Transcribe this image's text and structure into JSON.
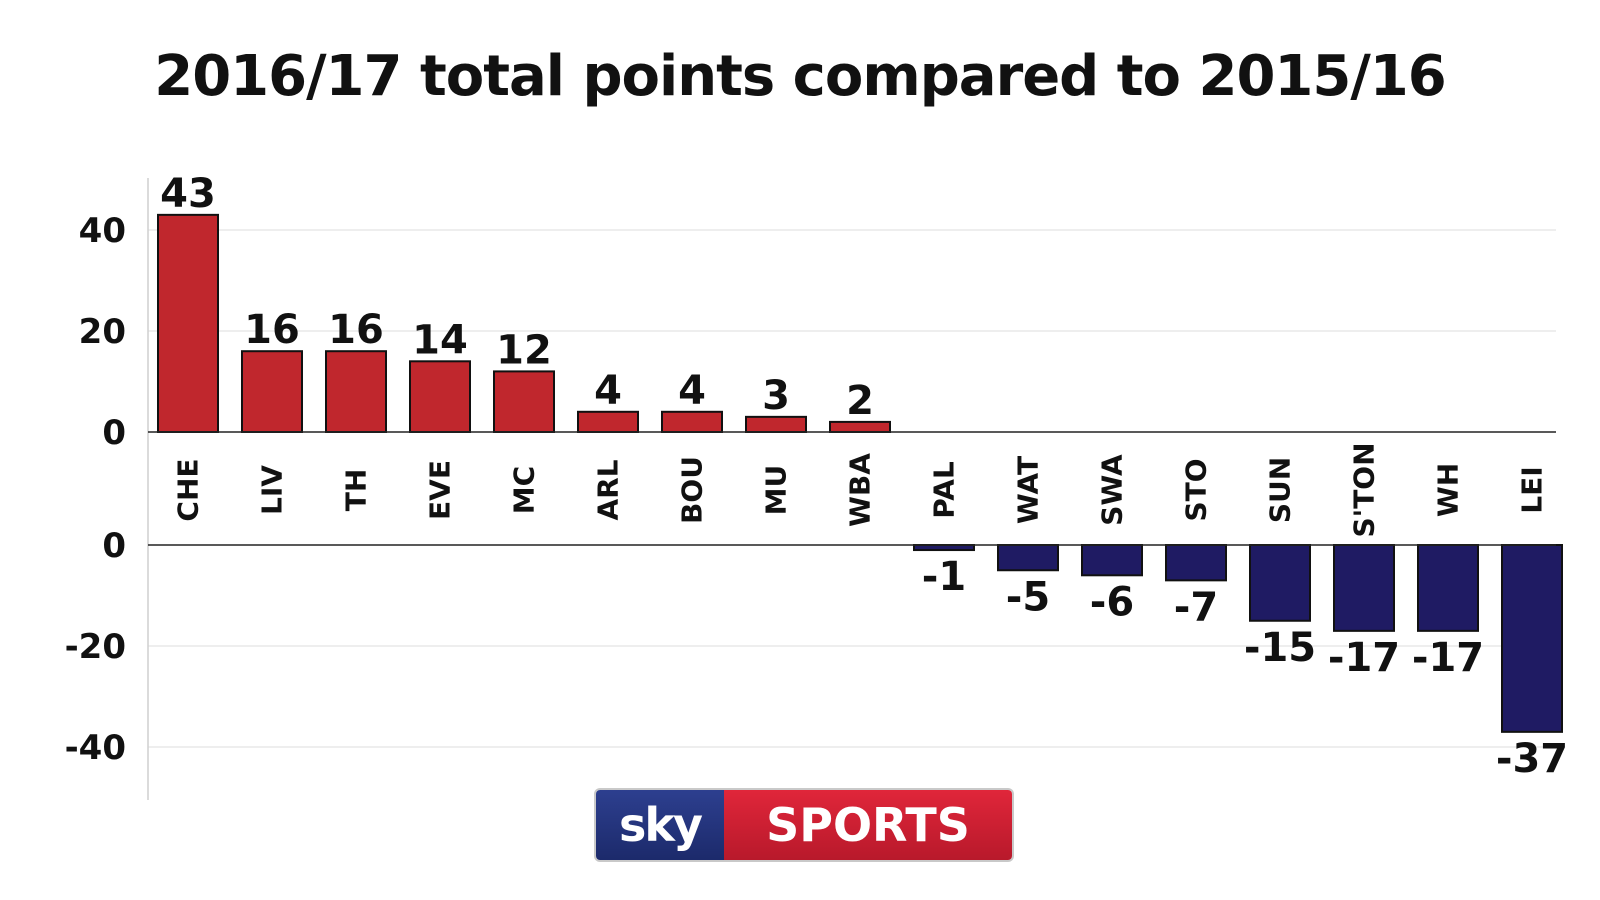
{
  "chart_data": [
    {
      "type": "bar",
      "title": "2016/17 total points compared to 2015/16",
      "categories": [
        "CHE",
        "LIV",
        "TH",
        "EVE",
        "MC",
        "ARL",
        "BOU",
        "MU",
        "WBA"
      ],
      "values": [
        43,
        16,
        16,
        14,
        12,
        4,
        4,
        3,
        2
      ],
      "yticks": [
        40,
        20,
        0
      ],
      "ylim": [
        0,
        50
      ],
      "grid": true,
      "color": "#c0272d"
    },
    {
      "type": "bar",
      "categories": [
        "PAL",
        "WAT",
        "SWA",
        "STO",
        "SUN",
        "S'TON",
        "WH",
        "LEI"
      ],
      "values": [
        -1,
        -5,
        -6,
        -7,
        -15,
        -17,
        -17,
        -37
      ],
      "yticks": [
        0,
        -20,
        -40
      ],
      "ylim": [
        -50,
        0
      ],
      "grid": true,
      "color": "#1f1b63"
    }
  ],
  "logo": {
    "left_text": "sky",
    "right_text": "SPORTS"
  }
}
